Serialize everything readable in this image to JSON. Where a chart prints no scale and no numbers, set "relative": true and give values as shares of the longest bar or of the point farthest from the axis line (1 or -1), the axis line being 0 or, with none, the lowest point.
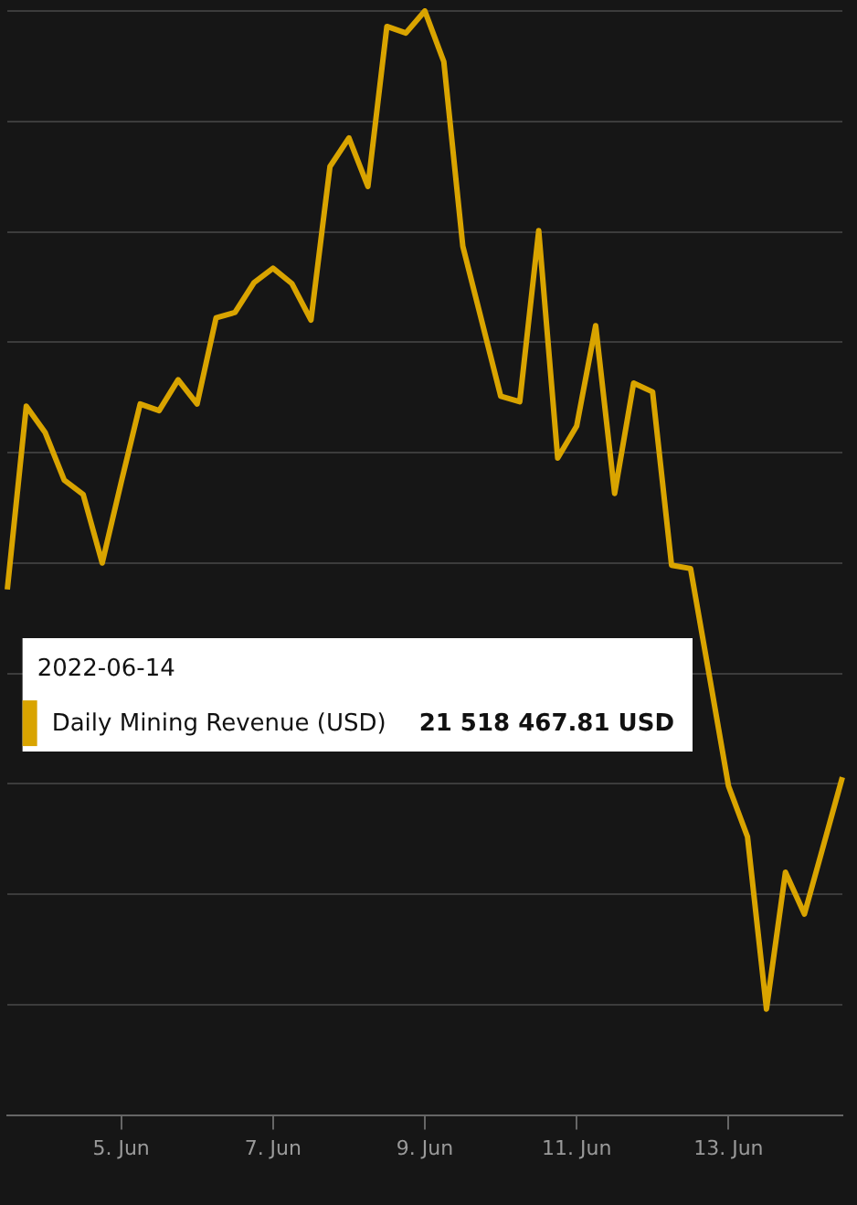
{
  "chart_data": {
    "type": "line",
    "relative": true,
    "grid": "y",
    "legend": "bottom left",
    "marker": "none",
    "line_style": "solid",
    "categories": [
      null,
      null,
      null,
      null,
      null,
      null,
      "5. Jun",
      null,
      null,
      null,
      null,
      null,
      null,
      null,
      "7. Jun",
      null,
      null,
      null,
      null,
      null,
      null,
      null,
      "9. Jun",
      null,
      null,
      null,
      null,
      null,
      null,
      null,
      "11. Jun",
      null,
      null,
      null,
      null,
      null,
      null,
      null,
      "13. Jun",
      null,
      null,
      null,
      null,
      null,
      null
    ],
    "series": [
      {
        "name": "Daily Mining Revenue (USD)",
        "color": "#d9a400",
        "values": [
          0.476,
          0.642,
          0.618,
          0.575,
          0.562,
          0.5,
          0.573,
          0.644,
          0.638,
          0.666,
          0.644,
          0.722,
          0.727,
          0.754,
          0.767,
          0.753,
          0.72,
          0.859,
          0.885,
          0.841,
          0.986,
          0.98,
          1,
          0.954,
          0.787,
          0.719,
          0.651,
          0.646,
          0.801,
          0.595,
          0.624,
          0.715,
          0.563,
          0.663,
          0.655,
          0.498,
          0.495,
          0.397,
          0.298,
          0.252,
          0.096,
          0.22,
          0.182,
          0.244,
          0.306
        ]
      }
    ],
    "annotations": [
      "2022-06-14",
      "21 518 467.81 USD"
    ]
  }
}
